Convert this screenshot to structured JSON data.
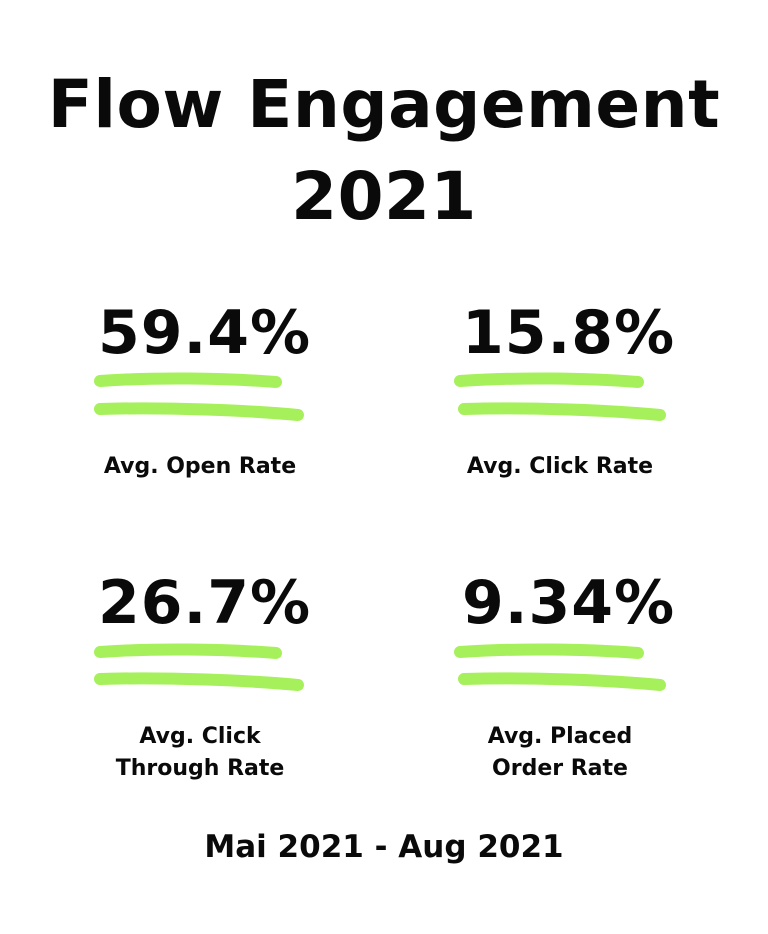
{
  "title": {
    "line1": "Flow Engagement",
    "line2": "2021"
  },
  "accent_color": "#a6f05c",
  "stats": [
    {
      "value": "59.4%",
      "label_lines": [
        "Avg. Open Rate"
      ]
    },
    {
      "value": "15.8%",
      "label_lines": [
        "Avg. Click Rate"
      ]
    },
    {
      "value": "26.7%",
      "label_lines": [
        "Avg. Click",
        "Through Rate"
      ]
    },
    {
      "value": "9.34%",
      "label_lines": [
        "Avg. Placed",
        "Order Rate"
      ]
    }
  ],
  "footer": {
    "date_range": "Mai 2021 - Aug 2021"
  }
}
